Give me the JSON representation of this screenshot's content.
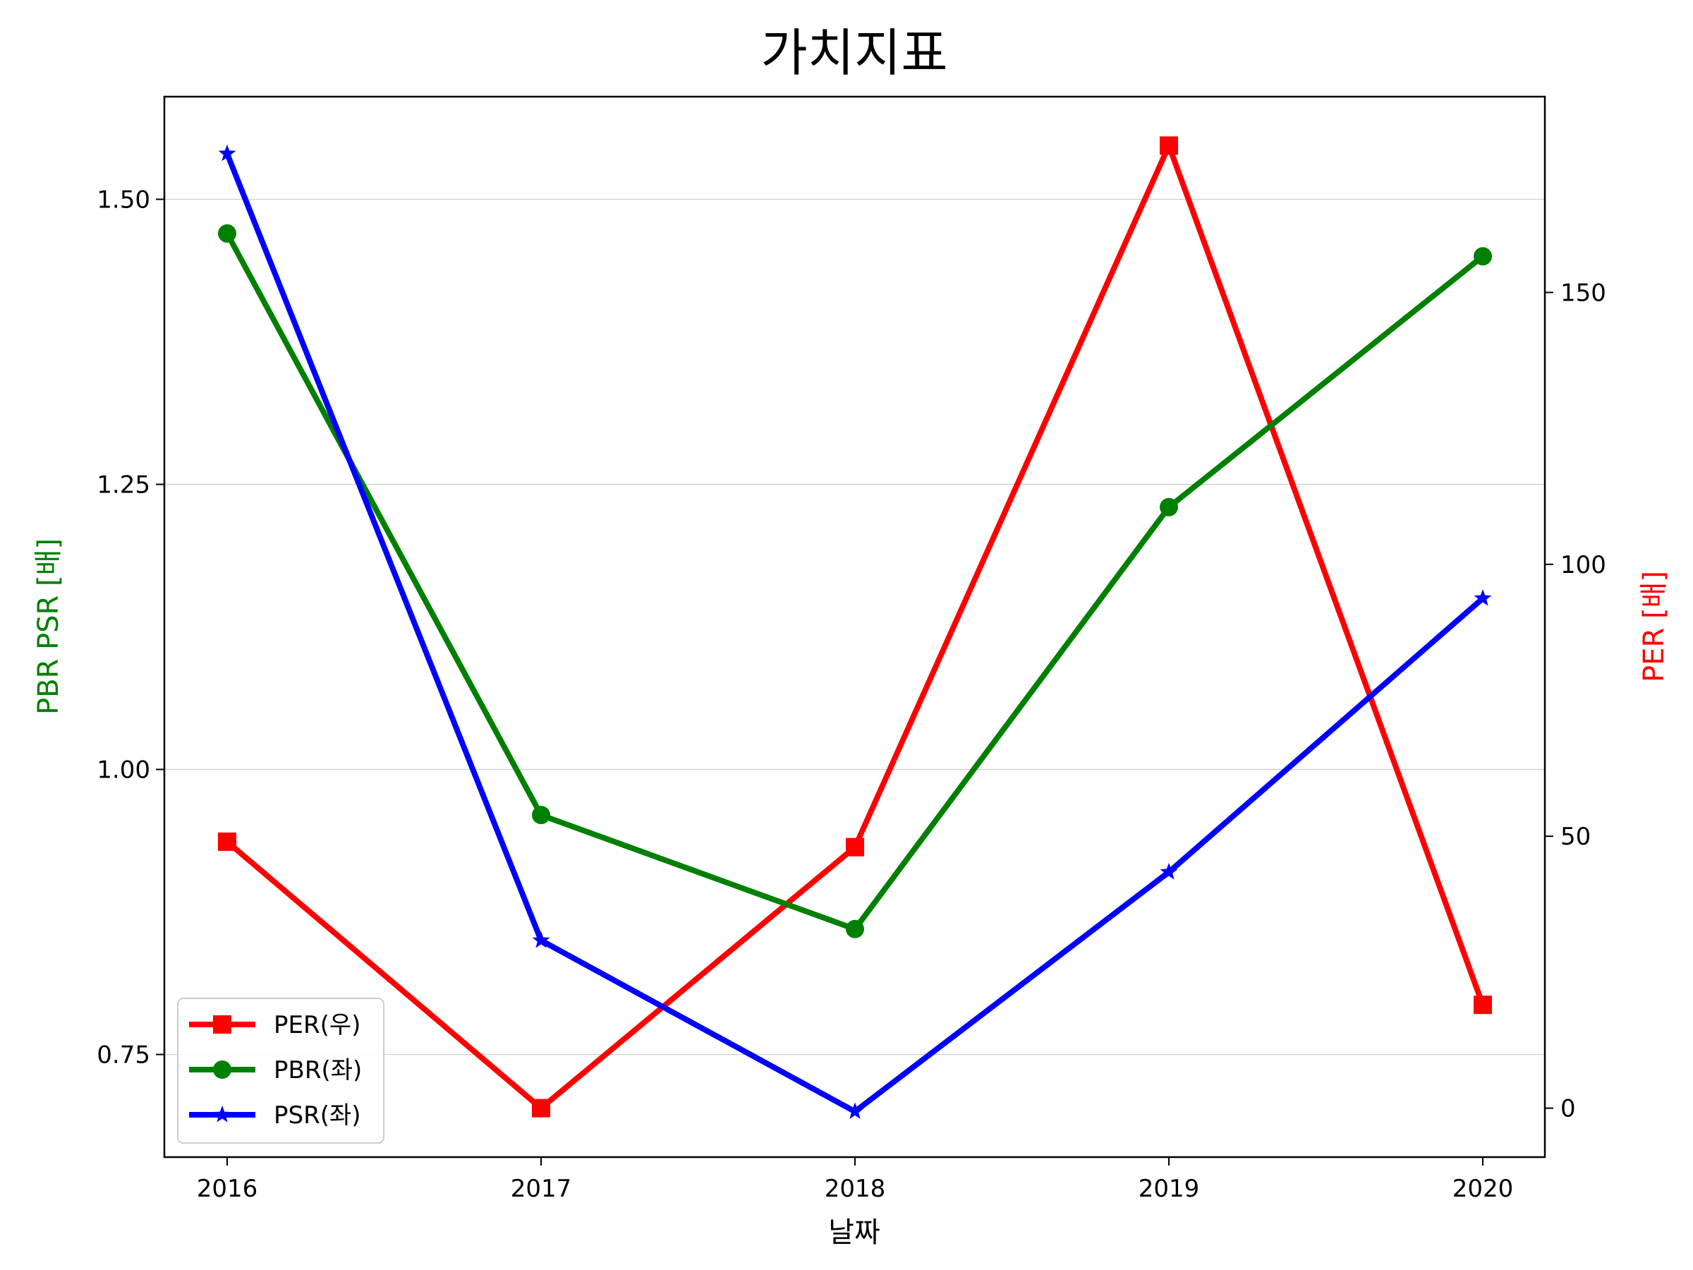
{
  "chart_data": {
    "type": "line",
    "title": "가치지표",
    "xlabel": "날짜",
    "ylabel_left": "PBR PSR [배]",
    "ylabel_right": "PER [배]",
    "categories": [
      "2016",
      "2017",
      "2018",
      "2019",
      "2020"
    ],
    "left_axis": {
      "ylim": [
        0.66,
        1.59
      ],
      "ticks": [
        0.75,
        1.0,
        1.25,
        1.5
      ],
      "tick_labels": [
        "0.75",
        "1.00",
        "1.25",
        "1.50"
      ]
    },
    "right_axis": {
      "ylim": [
        -9,
        186
      ],
      "ticks": [
        0,
        50,
        100,
        150
      ],
      "tick_labels": [
        "0",
        "50",
        "100",
        "150"
      ]
    },
    "grid": "horizontal",
    "legend_position": "lower-left",
    "series": [
      {
        "name": "PER(우)",
        "axis": "right",
        "color": "#ff0000",
        "marker": "square",
        "values": [
          49,
          0,
          48,
          177,
          19
        ]
      },
      {
        "name": "PBR(좌)",
        "axis": "left",
        "color": "#008000",
        "marker": "circle",
        "values": [
          1.47,
          0.96,
          0.86,
          1.23,
          1.45
        ]
      },
      {
        "name": "PSR(좌)",
        "axis": "left",
        "color": "#0000ff",
        "marker": "star",
        "values": [
          1.54,
          0.85,
          0.7,
          0.91,
          1.15
        ]
      }
    ]
  }
}
